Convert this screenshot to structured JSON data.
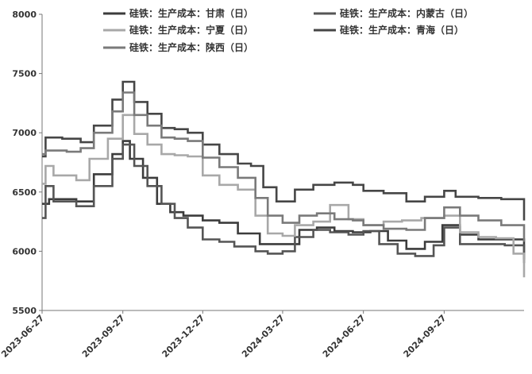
{
  "chart_data": {
    "type": "line",
    "title": "",
    "xlabel": "",
    "ylabel": "",
    "ylim": [
      5500,
      8000
    ],
    "yticks": [
      5500,
      6000,
      6500,
      7000,
      7500,
      8000
    ],
    "xlim": [
      "2023-06-27",
      "2024-12-27"
    ],
    "xticks": [
      "2023-06-27",
      "2023-09-27",
      "2023-12-27",
      "2024-03-27",
      "2024-06-27",
      "2024-09-27"
    ],
    "grid": false,
    "legend_position": "top",
    "series": [
      {
        "name": "硅铁：生产成本：甘肃（日）",
        "color": "#3c3c3c",
        "points": [
          [
            "2023-06-27",
            6400
          ],
          [
            "2023-07-05",
            6440
          ],
          [
            "2023-08-05",
            6420
          ],
          [
            "2023-08-25",
            6650
          ],
          [
            "2023-09-15",
            6820
          ],
          [
            "2023-09-27",
            6930
          ],
          [
            "2023-10-05",
            6780
          ],
          [
            "2023-10-20",
            6620
          ],
          [
            "2023-11-05",
            6400
          ],
          [
            "2023-11-20",
            6330
          ],
          [
            "2023-12-05",
            6300
          ],
          [
            "2023-12-27",
            6260
          ],
          [
            "2024-01-15",
            6240
          ],
          [
            "2024-02-05",
            6150
          ],
          [
            "2024-03-01",
            6060
          ],
          [
            "2024-03-27",
            6060
          ],
          [
            "2024-04-15",
            6180
          ],
          [
            "2024-05-05",
            6200
          ],
          [
            "2024-05-25",
            6170
          ],
          [
            "2024-06-15",
            6160
          ],
          [
            "2024-07-05",
            6170
          ],
          [
            "2024-07-25",
            6090
          ],
          [
            "2024-08-15",
            6020
          ],
          [
            "2024-09-05",
            6080
          ],
          [
            "2024-09-25",
            6220
          ],
          [
            "2024-10-15",
            6140
          ],
          [
            "2024-11-05",
            6100
          ],
          [
            "2024-12-05",
            6100
          ],
          [
            "2024-12-27",
            5930
          ]
        ]
      },
      {
        "name": "硅铁：生产成本：内蒙古（日）",
        "color": "#555555",
        "points": [
          [
            "2023-06-27",
            6280
          ],
          [
            "2023-07-01",
            6550
          ],
          [
            "2023-07-10",
            6420
          ],
          [
            "2023-08-05",
            6380
          ],
          [
            "2023-08-25",
            6550
          ],
          [
            "2023-09-15",
            6780
          ],
          [
            "2023-09-27",
            6900
          ],
          [
            "2023-10-10",
            6720
          ],
          [
            "2023-10-25",
            6550
          ],
          [
            "2023-11-10",
            6400
          ],
          [
            "2023-11-25",
            6280
          ],
          [
            "2023-12-10",
            6200
          ],
          [
            "2023-12-27",
            6100
          ],
          [
            "2024-01-15",
            6080
          ],
          [
            "2024-02-01",
            6040
          ],
          [
            "2024-02-25",
            6000
          ],
          [
            "2024-03-10",
            5980
          ],
          [
            "2024-03-27",
            6000
          ],
          [
            "2024-04-10",
            6120
          ],
          [
            "2024-05-01",
            6180
          ],
          [
            "2024-05-20",
            6160
          ],
          [
            "2024-06-10",
            6140
          ],
          [
            "2024-06-27",
            6170
          ],
          [
            "2024-07-15",
            6060
          ],
          [
            "2024-08-05",
            5980
          ],
          [
            "2024-08-25",
            5960
          ],
          [
            "2024-09-15",
            6050
          ],
          [
            "2024-09-27",
            6200
          ],
          [
            "2024-10-15",
            6060
          ],
          [
            "2024-11-05",
            6060
          ],
          [
            "2024-12-05",
            6050
          ],
          [
            "2024-12-27",
            5900
          ]
        ]
      },
      {
        "name": "硅铁：生产成本：宁夏（日）",
        "color": "#a8a8a8",
        "points": [
          [
            "2023-06-27",
            6570
          ],
          [
            "2023-07-01",
            6720
          ],
          [
            "2023-07-10",
            6640
          ],
          [
            "2023-08-05",
            6600
          ],
          [
            "2023-08-20",
            6780
          ],
          [
            "2023-09-10",
            6950
          ],
          [
            "2023-09-27",
            7150
          ],
          [
            "2023-10-10",
            6990
          ],
          [
            "2023-10-25",
            6900
          ],
          [
            "2023-11-10",
            6820
          ],
          [
            "2023-11-25",
            6810
          ],
          [
            "2023-12-10",
            6800
          ],
          [
            "2023-12-27",
            6640
          ],
          [
            "2024-01-15",
            6560
          ],
          [
            "2024-02-05",
            6520
          ],
          [
            "2024-02-25",
            6300
          ],
          [
            "2024-03-10",
            6150
          ],
          [
            "2024-03-27",
            6130
          ],
          [
            "2024-04-10",
            6220
          ],
          [
            "2024-05-01",
            6250
          ],
          [
            "2024-05-20",
            6390
          ],
          [
            "2024-06-10",
            6270
          ],
          [
            "2024-06-27",
            6220
          ],
          [
            "2024-07-20",
            6250
          ],
          [
            "2024-08-10",
            6260
          ],
          [
            "2024-09-01",
            6280
          ],
          [
            "2024-09-27",
            6300
          ],
          [
            "2024-10-15",
            6160
          ],
          [
            "2024-11-05",
            6120
          ],
          [
            "2024-11-25",
            6110
          ],
          [
            "2024-12-15",
            5980
          ],
          [
            "2024-12-27",
            5780
          ]
        ]
      },
      {
        "name": "硅铁：生产成本：青海（日）",
        "color": "#464646",
        "points": [
          [
            "2023-06-27",
            6800
          ],
          [
            "2023-07-01",
            6960
          ],
          [
            "2023-07-20",
            6950
          ],
          [
            "2023-08-10",
            6920
          ],
          [
            "2023-08-25",
            7060
          ],
          [
            "2023-09-15",
            7280
          ],
          [
            "2023-09-27",
            7430
          ],
          [
            "2023-10-10",
            7260
          ],
          [
            "2023-10-25",
            7160
          ],
          [
            "2023-11-10",
            7040
          ],
          [
            "2023-11-25",
            7030
          ],
          [
            "2023-12-10",
            7000
          ],
          [
            "2023-12-27",
            6900
          ],
          [
            "2024-01-15",
            6820
          ],
          [
            "2024-02-05",
            6740
          ],
          [
            "2024-02-20",
            6720
          ],
          [
            "2024-03-05",
            6540
          ],
          [
            "2024-03-20",
            6420
          ],
          [
            "2024-04-10",
            6520
          ],
          [
            "2024-05-01",
            6560
          ],
          [
            "2024-05-25",
            6580
          ],
          [
            "2024-06-15",
            6560
          ],
          [
            "2024-06-27",
            6510
          ],
          [
            "2024-07-20",
            6490
          ],
          [
            "2024-08-15",
            6420
          ],
          [
            "2024-09-05",
            6460
          ],
          [
            "2024-09-27",
            6510
          ],
          [
            "2024-10-10",
            6460
          ],
          [
            "2024-11-05",
            6450
          ],
          [
            "2024-12-01",
            6440
          ],
          [
            "2024-12-27",
            6260
          ]
        ]
      },
      {
        "name": "硅铁：生产成本：陕西（日）",
        "color": "#7a7a7a",
        "points": [
          [
            "2023-06-27",
            6820
          ],
          [
            "2023-07-01",
            6850
          ],
          [
            "2023-07-25",
            6840
          ],
          [
            "2023-08-10",
            6870
          ],
          [
            "2023-08-25",
            7000
          ],
          [
            "2023-09-15",
            7180
          ],
          [
            "2023-09-27",
            7340
          ],
          [
            "2023-10-10",
            7150
          ],
          [
            "2023-10-25",
            7060
          ],
          [
            "2023-11-10",
            6960
          ],
          [
            "2023-11-25",
            6950
          ],
          [
            "2023-12-10",
            6930
          ],
          [
            "2023-12-27",
            6790
          ],
          [
            "2024-01-15",
            6710
          ],
          [
            "2024-02-05",
            6620
          ],
          [
            "2024-02-25",
            6450
          ],
          [
            "2024-03-10",
            6300
          ],
          [
            "2024-03-27",
            6240
          ],
          [
            "2024-04-15",
            6300
          ],
          [
            "2024-05-05",
            6320
          ],
          [
            "2024-05-25",
            6270
          ],
          [
            "2024-06-15",
            6260
          ],
          [
            "2024-06-27",
            6220
          ],
          [
            "2024-07-20",
            6190
          ],
          [
            "2024-08-15",
            6180
          ],
          [
            "2024-09-05",
            6280
          ],
          [
            "2024-09-27",
            6370
          ],
          [
            "2024-10-15",
            6300
          ],
          [
            "2024-11-05",
            6260
          ],
          [
            "2024-12-01",
            6220
          ],
          [
            "2024-12-27",
            6080
          ]
        ]
      }
    ]
  }
}
